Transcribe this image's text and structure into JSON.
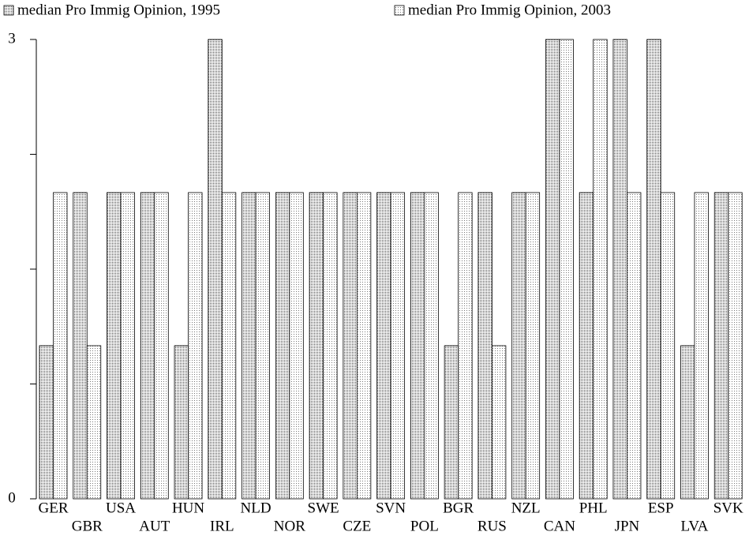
{
  "chart_data": {
    "type": "bar",
    "categories": [
      "GER",
      "GBR",
      "USA",
      "AUT",
      "HUN",
      "IRL",
      "NLD",
      "NOR",
      "SWE",
      "CZE",
      "SVN",
      "POL",
      "BGR",
      "RUS",
      "NZL",
      "CAN",
      "PHL",
      "JPN",
      "ESP",
      "LVA",
      "SVK"
    ],
    "series": [
      {
        "name": "median Pro Immig Opinion, 1995",
        "color": "#444444",
        "values": [
          1,
          2,
          2,
          2,
          1,
          3,
          2,
          2,
          2,
          2,
          2,
          2,
          1,
          2,
          2,
          3,
          2,
          3,
          3,
          1,
          2
        ]
      },
      {
        "name": "median Pro Immig Opinion, 2003",
        "color": "#777777",
        "values": [
          2,
          1,
          2,
          2,
          2,
          2,
          2,
          2,
          2,
          2,
          2,
          2,
          2,
          1,
          2,
          3,
          3,
          2,
          2,
          2,
          2
        ]
      }
    ],
    "ylim": [
      0,
      3
    ],
    "yticks": [
      0,
      3
    ],
    "minor_yticks": [
      0.75,
      1.5,
      2.25
    ],
    "grid": false
  }
}
